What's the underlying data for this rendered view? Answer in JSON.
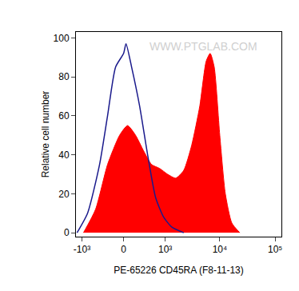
{
  "chart_data": {
    "type": "area",
    "xlabel": "PE-65226 CD45RA (F8-11-13)",
    "ylabel": "Relative cell number",
    "watermark": "WWW.PTGLAB.COM",
    "log": "x",
    "grid": false,
    "xlim": [
      -1300,
      130000
    ],
    "xticks": [
      {
        "value": -1000,
        "label": "-10³"
      },
      0,
      {
        "value": 1000,
        "label": "10³"
      },
      {
        "value": 10000,
        "label": "10⁴"
      },
      {
        "value": 100000,
        "label": "10⁵"
      }
    ],
    "ylim": [
      -2,
      103
    ],
    "yticks": [
      0,
      20,
      40,
      60,
      80,
      100
    ],
    "series": [
      {
        "type": "area",
        "color": "#ff0000",
        "x": [
          -934,
          -529,
          -262,
          -61,
          61,
          190,
          341,
          529,
          777,
          1113,
          1577,
          2215,
          3100,
          4340,
          5670,
          6700,
          7930,
          10000,
          12600,
          16500,
          23000
        ],
        "values": [
          0,
          12,
          35,
          50,
          55,
          50,
          42,
          35,
          33,
          30,
          28,
          32,
          45,
          65,
          88,
          92,
          85,
          50,
          20,
          5,
          0
        ]
      },
      {
        "type": "line",
        "color": "#1a1a8c",
        "x": [
          -1240,
          -777,
          -429,
          -262,
          -124,
          0,
          37,
          124,
          262,
          429,
          645,
          934,
          1325,
          2215
        ],
        "values": [
          0,
          10,
          35,
          60,
          85,
          92,
          97,
          85,
          65,
          40,
          18,
          8,
          3,
          0
        ]
      }
    ]
  }
}
